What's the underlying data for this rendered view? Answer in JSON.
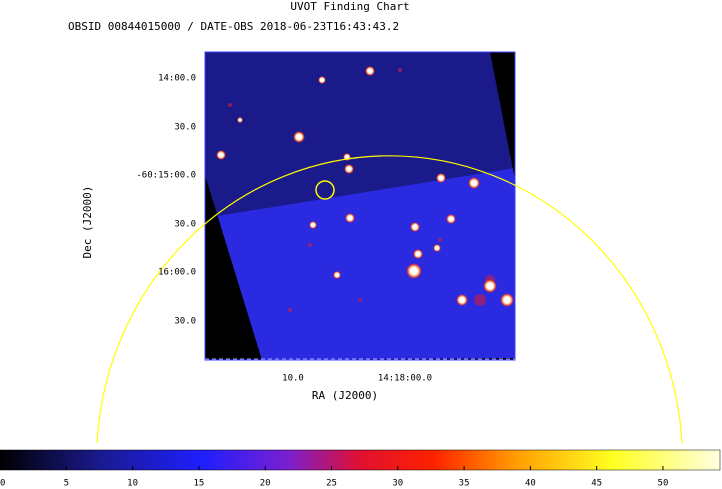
{
  "header": {
    "title": "UVOT Finding Chart",
    "subtitle": "OBSID 00844015000 / DATE-OBS 2018-06-23T16:43:43.2"
  },
  "x_axis": {
    "label": "RA (J2000)",
    "ticks": [
      "10.0",
      "14:18:00.0"
    ]
  },
  "y_axis": {
    "label": "Dec (J2000)",
    "ticks": [
      "14:00.0",
      "30.0",
      "-60:15:00.0",
      "30.0",
      "16:00.0",
      "30.0"
    ]
  },
  "colorbar": {
    "lim": [
      0,
      54.3
    ],
    "ticks": [
      0,
      5,
      10,
      15,
      20,
      25,
      30,
      35,
      40,
      45,
      50
    ]
  }
}
